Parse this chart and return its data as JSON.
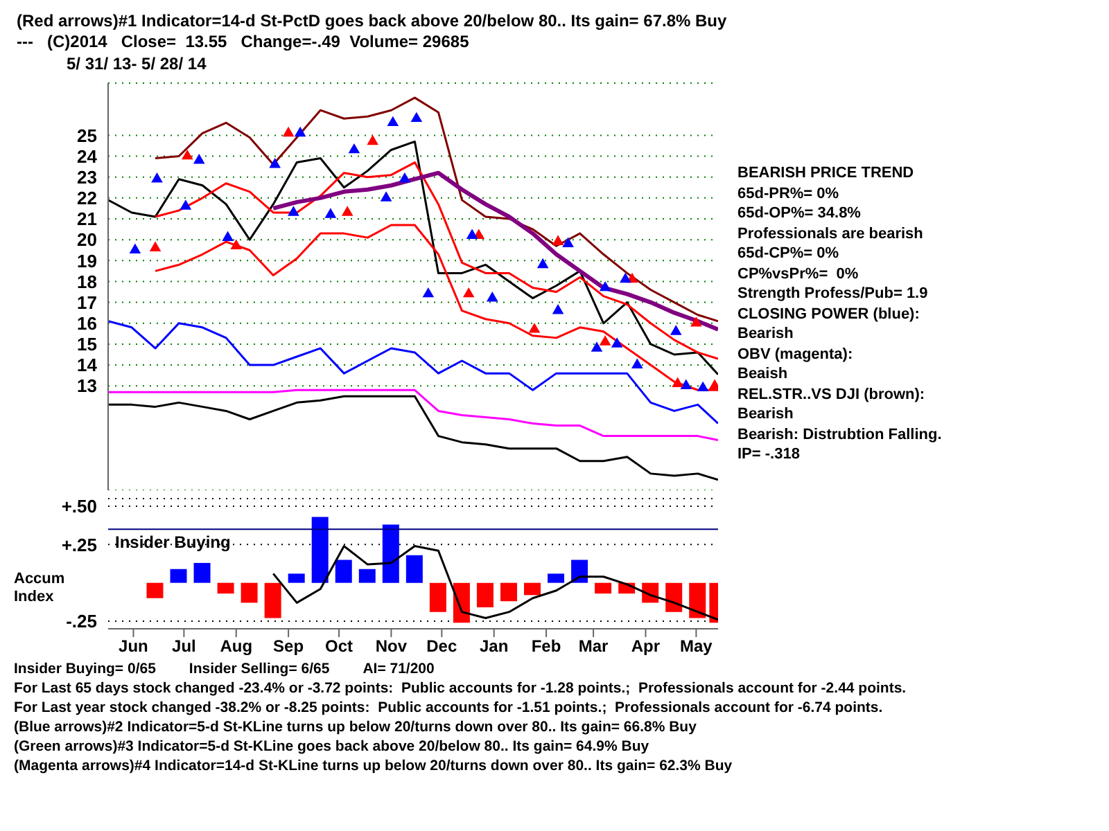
{
  "chart_data": [
    {
      "type": "line",
      "title": "(Red arrows)#1 Indicator=14-d St-PctD goes back above 20/below 80.. Its gain= 67.8% Buy",
      "subtitle": "---   (C)2014   Close=  13.55   Change=-.49  Volume= 29685",
      "annotations": [
        "5/ 31/ 13- 5/ 28/ 14",
        "BEARISH PRICE TREND",
        "65d-PR%= 0%",
        "65d-OP%= 34.8%",
        "Professionals are bearish",
        "65d-CP%= 0%",
        "CP%vsPr%=  0%",
        "Strength Profess/Pub= 1.9",
        "CLOSING POWER (blue):",
        "Bearish",
        "OBV (magenta):",
        "Beaish",
        "REL.STR..VS DJI (brown):",
        "Bearish",
        "Bearish: Distrubtion Falling.",
        "IP= -.318"
      ],
      "x": [
        "2013-05-31",
        "2013-06-14",
        "2013-06-28",
        "2013-07-12",
        "2013-07-26",
        "2013-08-09",
        "2013-08-23",
        "2013-09-06",
        "2013-09-20",
        "2013-10-04",
        "2013-10-18",
        "2013-11-01",
        "2013-11-15",
        "2013-11-29",
        "2013-12-13",
        "2013-12-27",
        "2014-01-10",
        "2014-01-24",
        "2014-02-07",
        "2014-02-21",
        "2014-03-07",
        "2014-03-21",
        "2014-04-04",
        "2014-04-18",
        "2014-05-02",
        "2014-05-16",
        "2014-05-28"
      ],
      "xlim": [
        "2013-05-31",
        "2014-05-28"
      ],
      "ylim": [
        8,
        27.5
      ],
      "yticks": [
        13,
        14,
        15,
        16,
        17,
        18,
        19,
        20,
        21,
        22,
        23,
        24,
        25
      ],
      "tick_labels": "y",
      "grid": "y",
      "marker": "none",
      "series": [
        {
          "color": "#000000",
          "values": [
            21.9,
            21.3,
            21.1,
            22.9,
            22.6,
            21.7,
            20.0,
            21.7,
            23.7,
            23.9,
            22.5,
            23.3,
            24.3,
            24.7,
            18.4,
            18.4,
            18.8,
            18.0,
            17.2,
            17.8,
            18.5,
            16.0,
            17.0,
            15.0,
            14.5,
            14.6,
            13.55
          ]
        },
        {
          "color": "#800000",
          "values": [
            null,
            null,
            23.9,
            24.0,
            25.1,
            25.6,
            24.9,
            23.6,
            24.9,
            26.2,
            25.8,
            25.9,
            26.2,
            26.8,
            26.1,
            21.9,
            21.1,
            21.0,
            20.5,
            19.7,
            20.3,
            19.3,
            18.4,
            17.6,
            17.0,
            16.4,
            16.1
          ]
        },
        {
          "color": "#ff0000",
          "values": [
            null,
            null,
            21.1,
            21.4,
            22.0,
            22.7,
            22.3,
            21.3,
            21.3,
            22.1,
            23.2,
            23.0,
            23.1,
            23.7,
            21.7,
            18.9,
            18.4,
            18.4,
            17.7,
            17.5,
            18.2,
            17.3,
            16.9,
            16.0,
            15.2,
            14.6,
            14.3
          ]
        },
        {
          "color": "#ff0000",
          "values": [
            null,
            null,
            18.5,
            18.8,
            19.3,
            19.9,
            19.5,
            18.3,
            19.1,
            20.3,
            20.3,
            20.1,
            20.7,
            20.7,
            19.3,
            16.6,
            16.2,
            16.0,
            15.4,
            15.3,
            15.8,
            15.6,
            14.8,
            14.0,
            13.2,
            12.8,
            12.8
          ]
        },
        {
          "color": "#800080",
          "values": [
            null,
            null,
            null,
            null,
            null,
            null,
            null,
            21.5,
            21.8,
            22.0,
            22.3,
            22.4,
            22.6,
            22.9,
            23.2,
            22.4,
            21.7,
            21.1,
            20.3,
            19.3,
            18.5,
            17.7,
            17.4,
            17.0,
            16.5,
            16.1,
            15.7
          ]
        },
        {
          "color": "#0000ff",
          "values": [
            16.1,
            15.8,
            14.8,
            16.0,
            15.8,
            15.3,
            14.0,
            14.0,
            14.4,
            14.8,
            13.6,
            14.2,
            14.8,
            14.6,
            13.6,
            14.2,
            13.6,
            13.6,
            12.8,
            13.6,
            13.6,
            13.6,
            13.6,
            12.2,
            11.8,
            12.1,
            11.2
          ]
        },
        {
          "color": "#ff00ff",
          "values": [
            12.7,
            12.7,
            12.7,
            12.7,
            12.7,
            12.7,
            12.7,
            12.7,
            12.8,
            12.8,
            12.8,
            12.8,
            12.8,
            12.8,
            11.8,
            11.6,
            11.5,
            11.4,
            11.2,
            11.1,
            11.1,
            10.6,
            10.6,
            10.6,
            10.6,
            10.6,
            10.4
          ]
        },
        {
          "color": "#000000",
          "values": [
            12.1,
            12.1,
            12.0,
            12.2,
            12.0,
            11.8,
            11.4,
            11.8,
            12.2,
            12.3,
            12.5,
            12.5,
            12.5,
            12.5,
            10.6,
            10.3,
            10.2,
            10.0,
            10.0,
            10.0,
            9.4,
            9.4,
            9.6,
            8.8,
            8.7,
            8.8,
            8.5
          ]
        },
        {
          "type": "scatter",
          "marker": "triangle",
          "color": "#0000ff",
          "x": [
            "2013-06-16",
            "2013-07-16",
            "2013-08-10",
            "2013-09-18",
            "2013-10-10",
            "2013-11-12",
            "2013-11-23",
            "2013-12-07",
            "2014-01-14",
            "2014-02-22",
            "2014-03-17",
            "2014-03-29",
            "2014-04-10",
            "2014-05-09",
            "2014-05-19"
          ],
          "values": [
            19.5,
            21.6,
            20.1,
            21.3,
            21.2,
            22.0,
            22.9,
            17.4,
            17.2,
            16.6,
            14.8,
            15.0,
            14.0,
            13.0,
            12.9
          ]
        },
        {
          "type": "scatter",
          "marker": "triangle",
          "color": "#ff0000",
          "x": [
            "2013-06-28",
            "2013-08-15",
            "2013-10-20",
            "2013-12-31",
            "2014-02-08",
            "2014-03-22",
            "2014-05-04",
            "2014-05-26"
          ],
          "values": [
            19.6,
            19.7,
            21.3,
            17.4,
            15.7,
            15.1,
            13.1,
            13.0
          ]
        },
        {
          "type": "scatter",
          "marker": "triangle",
          "color": "#ff0000",
          "x": [
            "2013-07-17",
            "2013-09-15",
            "2013-11-04",
            "2014-01-06",
            "2014-02-22",
            "2014-04-07",
            "2014-05-15"
          ],
          "values": [
            24.0,
            25.1,
            24.7,
            20.2,
            19.9,
            18.1,
            16.0
          ]
        },
        {
          "type": "scatter",
          "marker": "triangle",
          "color": "#0000ff",
          "x": [
            "2013-06-29",
            "2013-07-24",
            "2013-09-07",
            "2013-09-22",
            "2013-10-24",
            "2013-11-16",
            "2013-11-30",
            "2014-01-02",
            "2014-02-13",
            "2014-02-28",
            "2014-03-22",
            "2014-04-03",
            "2014-05-03"
          ],
          "values": [
            22.9,
            23.8,
            23.6,
            25.1,
            24.3,
            25.6,
            25.8,
            20.2,
            18.8,
            19.8,
            17.7,
            18.1,
            15.6
          ]
        }
      ]
    },
    {
      "type": "bar",
      "ylabel": "Accum Index",
      "annotations": [
        "Insider Buying= 0/65",
        "Insider Selling= 6/65",
        "AI= 71/200",
        "For Last 65 days stock changed -23.4% or -3.72 points:  Public accounts for -1.28 points.;  Professionals account for -2.44 points.",
        "For Last year stock changed -38.2% or -8.25 points:  Public accounts for -1.51 points.;  Professionals account for -6.74 points.",
        "(Blue arrows)#2 Indicator=5-d St-KLine turns up below 20/turns down over 80.. Its gain= 66.8% Buy",
        "(Green arrows)#3 Indicator=5-d St-KLine goes back above 20/below 80.. Its gain= 64.9% Buy",
        "(Magenta arrows)#4 Indicator=14-d St-KLine turns up below 20/turns down over 80.. Its gain= 62.3% Buy"
      ],
      "x": [
        "2013-06-28",
        "2013-07-12",
        "2013-07-26",
        "2013-08-09",
        "2013-08-23",
        "2013-09-06",
        "2013-09-20",
        "2013-10-04",
        "2013-10-18",
        "2013-11-01",
        "2013-11-15",
        "2013-11-29",
        "2013-12-13",
        "2013-12-27",
        "2014-01-10",
        "2014-01-24",
        "2014-02-07",
        "2014-02-21",
        "2014-03-07",
        "2014-03-21",
        "2014-04-04",
        "2014-04-18",
        "2014-05-02",
        "2014-05-16",
        "2014-05-28"
      ],
      "xlim": [
        "2013-05-31",
        "2014-05-28"
      ],
      "xticks": [
        {
          "value": "2013-06-15",
          "label": "Jun"
        },
        {
          "value": "2013-07-15",
          "label": "Jul"
        },
        {
          "value": "2013-08-15",
          "label": "Aug"
        },
        {
          "value": "2013-09-15",
          "label": "Sep"
        },
        {
          "value": "2013-10-15",
          "label": "Oct"
        },
        {
          "value": "2013-11-15",
          "label": "Nov"
        },
        {
          "value": "2013-12-15",
          "label": "Dec"
        },
        {
          "value": "2014-01-15",
          "label": "Jan"
        },
        {
          "value": "2014-02-15",
          "label": "Feb"
        },
        {
          "value": "2014-03-15",
          "label": "Mar"
        },
        {
          "value": "2014-04-15",
          "label": "Apr"
        },
        {
          "value": "2014-05-15",
          "label": "May"
        }
      ],
      "ylim": [
        -0.3,
        0.55
      ],
      "yticks": [
        {
          "value": -0.25,
          "label": "-.25"
        },
        {
          "value": 0.25,
          "label": "+.25"
        },
        {
          "value": 0.5,
          "label": "+.50"
        }
      ],
      "grid": "y",
      "marker": "none",
      "ref_lines": [
        {
          "axis": "y",
          "value": 0.35,
          "label": "Insider Buying",
          "color": "#000080"
        }
      ],
      "series": [
        {
          "colors": [
            "#ff0000",
            "#0000ff",
            "#0000ff",
            "#ff0000",
            "#ff0000",
            "#ff0000",
            "#0000ff",
            "#0000ff",
            "#0000ff",
            "#0000ff",
            "#0000ff",
            "#0000ff",
            "#ff0000",
            "#ff0000",
            "#ff0000",
            "#ff0000",
            "#ff0000",
            "#0000ff",
            "#0000ff",
            "#ff0000",
            "#ff0000",
            "#ff0000",
            "#ff0000",
            "#ff0000",
            "#ff0000"
          ],
          "values": [
            -0.1,
            0.09,
            0.13,
            -0.07,
            -0.13,
            -0.23,
            0.06,
            0.43,
            0.15,
            0.09,
            0.38,
            0.18,
            -0.19,
            -0.26,
            -0.16,
            -0.12,
            -0.08,
            0.06,
            0.15,
            -0.07,
            -0.07,
            -0.13,
            -0.19,
            -0.23,
            -0.26
          ]
        },
        {
          "type": "line",
          "color": "#000000",
          "values": [
            null,
            null,
            null,
            null,
            null,
            0.06,
            -0.13,
            -0.04,
            0.24,
            0.12,
            0.13,
            0.24,
            0.21,
            -0.19,
            -0.23,
            -0.19,
            -0.1,
            -0.05,
            0.04,
            0.04,
            -0.01,
            -0.08,
            -0.13,
            -0.19,
            -0.24
          ]
        }
      ]
    }
  ]
}
